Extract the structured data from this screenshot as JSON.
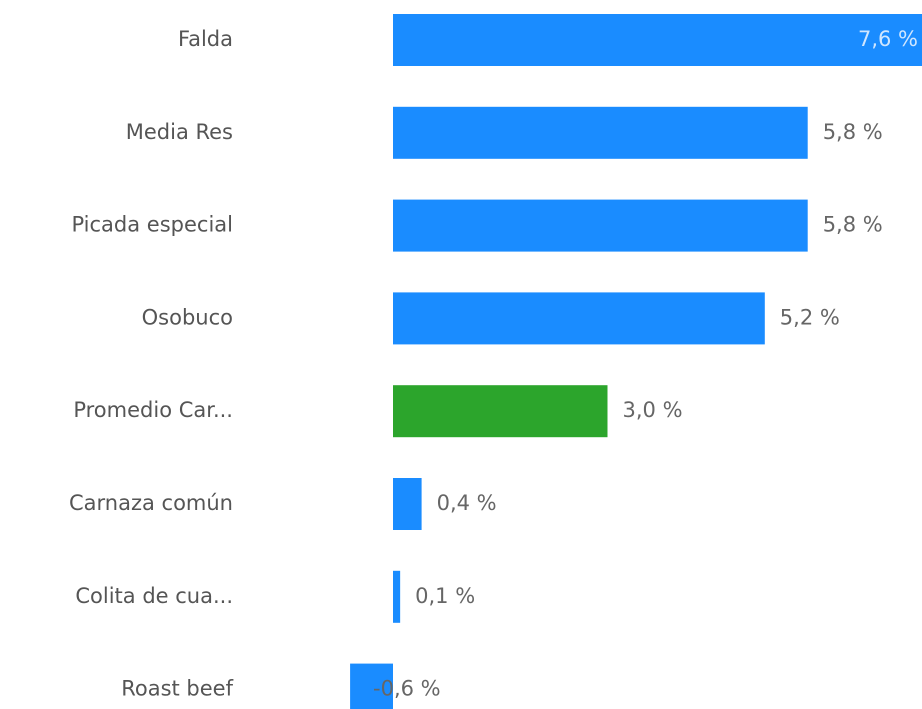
{
  "chart_data": {
    "type": "bar",
    "orientation": "horizontal",
    "categories": [
      "Falda",
      "Media Res",
      "Picada especial",
      "Osobuco",
      "Promedio Car...",
      "Carnaza común",
      "Colita de cua...",
      "Roast beef"
    ],
    "values": [
      7.6,
      5.8,
      5.8,
      5.2,
      3.0,
      0.4,
      0.1,
      -0.6
    ],
    "value_labels": [
      "7,6 %",
      "5,8 %",
      "5,8 %",
      "5,2 %",
      "3,0 %",
      "0,4 %",
      "0,1 %",
      "-0,6 %"
    ],
    "colors": [
      "#1a8cff",
      "#1a8cff",
      "#1a8cff",
      "#1a8cff",
      "#2ca52c",
      "#1a8cff",
      "#1a8cff",
      "#1a8cff"
    ]
  }
}
